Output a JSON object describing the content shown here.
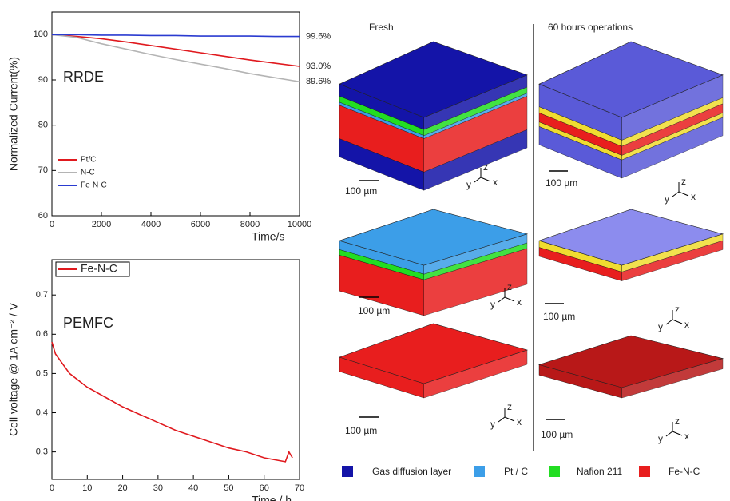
{
  "chart_data": [
    {
      "type": "line",
      "inset_label": "RRDE",
      "x_label": "Time/s",
      "y_label": "Normalized Current(%)",
      "x": [
        0,
        1000,
        2000,
        3000,
        4000,
        5000,
        6000,
        7000,
        8000,
        9000,
        10000
      ],
      "series": [
        {
          "name": "Pt/C",
          "color": "#e0191e",
          "values": [
            100,
            99.6,
            99.1,
            98.4,
            97.6,
            96.8,
            96.0,
            95.2,
            94.4,
            93.7,
            93.0
          ]
        },
        {
          "name": "N-C",
          "color": "#b4b4b4",
          "values": [
            100,
            99.4,
            98.0,
            96.8,
            95.6,
            94.5,
            93.5,
            92.5,
            91.4,
            90.5,
            89.6
          ]
        },
        {
          "name": "Fe-N-C",
          "color": "#2a3bd0",
          "values": [
            100,
            100,
            99.9,
            99.9,
            99.8,
            99.8,
            99.7,
            99.7,
            99.7,
            99.6,
            99.6
          ]
        }
      ],
      "annotations": [
        {
          "text": "99.6%",
          "y": 99.6
        },
        {
          "text": "93.0%",
          "y": 93.0
        },
        {
          "text": "89.6%",
          "y": 89.6
        }
      ],
      "xlim": [
        0,
        10000
      ],
      "xticks": [
        0,
        2000,
        4000,
        6000,
        8000,
        10000
      ],
      "ylim": [
        60,
        105
      ],
      "yticks": [
        60,
        70,
        80,
        90,
        100
      ],
      "legend": "lower left"
    },
    {
      "type": "line",
      "inset_label": "PEMFC",
      "x_label": "Time / h",
      "y_label": "Cell voltage @ 1A cm⁻² / V",
      "x": [
        0,
        1,
        5,
        10,
        15,
        20,
        25,
        30,
        35,
        40,
        45,
        50,
        55,
        60,
        66,
        67,
        68
      ],
      "series": [
        {
          "name": "Fe-N-C",
          "color": "#e0191e",
          "values": [
            0.58,
            0.55,
            0.5,
            0.465,
            0.44,
            0.415,
            0.395,
            0.375,
            0.355,
            0.34,
            0.325,
            0.31,
            0.3,
            0.285,
            0.275,
            0.3,
            0.285
          ]
        }
      ],
      "xlim": [
        0,
        70
      ],
      "xticks": [
        0,
        10,
        20,
        30,
        40,
        50,
        60,
        70
      ],
      "ylim": [
        0.23,
        0.79
      ],
      "yticks": [
        0.3,
        0.4,
        0.5,
        0.6,
        0.7
      ],
      "legend": "upper left"
    }
  ],
  "panels": {
    "columns": [
      "Fresh",
      "60 hours operations"
    ],
    "scale_bar": "100 µm",
    "axes": [
      "x",
      "y",
      "z"
    ],
    "legend": [
      {
        "name": "Gas diffusion layer",
        "color": "#1414a8"
      },
      {
        "name": "Pt / C",
        "color": "#3c9ee8"
      },
      {
        "name": "Nafion 211",
        "color": "#22dd22"
      },
      {
        "name": "Fe-N-C",
        "color": "#e81e1e"
      }
    ]
  }
}
